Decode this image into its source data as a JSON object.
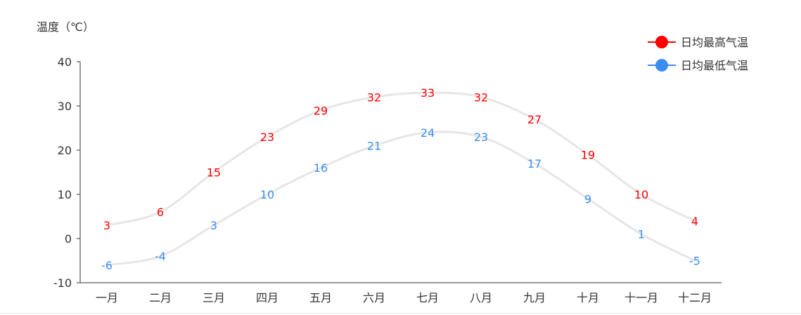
{
  "chart_data": {
    "type": "line",
    "ylabel": "温度（℃）",
    "ylim": [
      -10,
      40
    ],
    "yticks": [
      -10,
      0,
      10,
      20,
      30,
      40
    ],
    "grid": false,
    "legend_position": "top-right",
    "categories": [
      "一月",
      "二月",
      "三月",
      "四月",
      "五月",
      "六月",
      "七月",
      "八月",
      "九月",
      "十月",
      "十一月",
      "十二月"
    ],
    "series": [
      {
        "name": "日均最高气温",
        "color": "#ff0000",
        "values": [
          3,
          6,
          15,
          23,
          29,
          32,
          33,
          32,
          27,
          19,
          10,
          4
        ]
      },
      {
        "name": "日均最低气温",
        "color": "#3a8ef0",
        "values": [
          -6,
          -4,
          3,
          10,
          16,
          21,
          24,
          23,
          17,
          9,
          1,
          -5
        ]
      }
    ],
    "line_color": "#e6e6e6",
    "marker": "circle"
  }
}
